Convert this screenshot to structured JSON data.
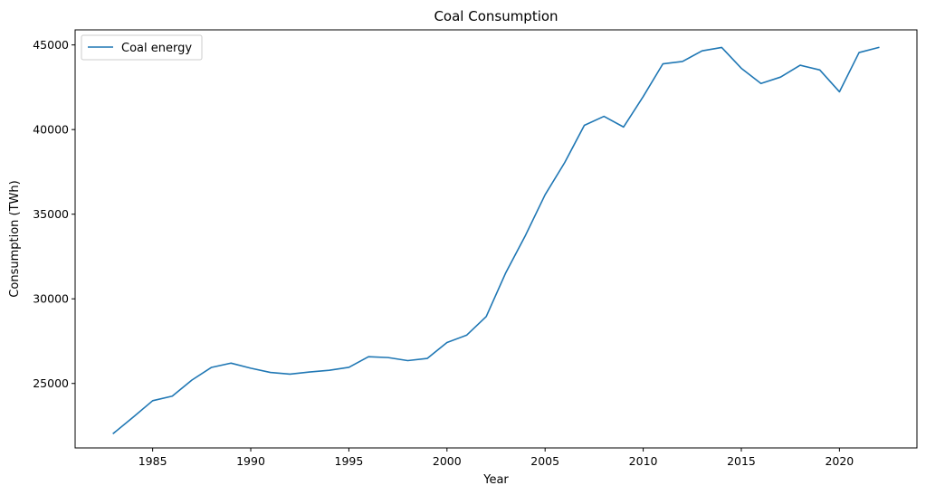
{
  "chart_data": {
    "type": "line",
    "title": "Coal Consumption",
    "xlabel": "Year",
    "ylabel": "Consumption (TWh)",
    "xlim": [
      1981.05,
      2023.95
    ],
    "ylim": [
      21190,
      45890
    ],
    "xticks": [
      1985,
      1990,
      1995,
      2000,
      2005,
      2010,
      2015,
      2020
    ],
    "yticks": [
      25000,
      30000,
      35000,
      40000,
      45000
    ],
    "grid": false,
    "legend_position": "top-left",
    "series": [
      {
        "name": "Coal energy",
        "color": "#1f77b4",
        "x": [
          1983,
          1984,
          1985,
          1986,
          1987,
          1988,
          1989,
          1990,
          1991,
          1992,
          1993,
          1994,
          1995,
          1996,
          1997,
          1998,
          1999,
          2000,
          2001,
          2002,
          2003,
          2004,
          2005,
          2006,
          2007,
          2008,
          2009,
          2010,
          2011,
          2012,
          2013,
          2014,
          2015,
          2016,
          2017,
          2018,
          2019,
          2020,
          2021,
          2022
        ],
        "y": [
          22050,
          23000,
          23980,
          24250,
          25200,
          25950,
          26200,
          25900,
          25650,
          25550,
          25680,
          25780,
          25950,
          26580,
          26530,
          26350,
          26480,
          27420,
          27850,
          28950,
          31550,
          33750,
          36150,
          38050,
          40250,
          40780,
          40150,
          41950,
          43880,
          44020,
          44650,
          44850,
          43620,
          42720,
          43100,
          43800,
          43520,
          42230,
          44550,
          44850
        ]
      }
    ]
  }
}
